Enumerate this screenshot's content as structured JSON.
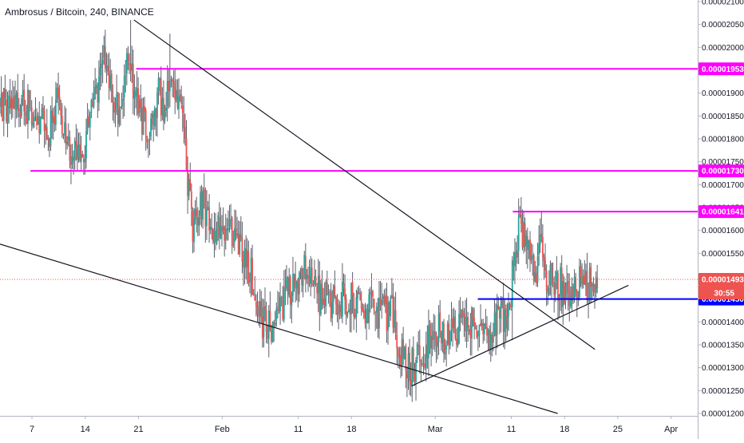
{
  "header": {
    "title": "Ambrosus / Bitcoin, 240, BINANCE"
  },
  "chart_data": {
    "type": "candlestick",
    "title": "Ambrosus / Bitcoin, 240, BINANCE",
    "grid": false,
    "ylim": [
      1.2e-05,
      2.11e-05
    ],
    "y_ticks": [
      {
        "value": 2.1e-05,
        "label": "0.00002100"
      },
      {
        "value": 2.05e-05,
        "label": "0.00002050"
      },
      {
        "value": 2e-05,
        "label": "0.00002000"
      },
      {
        "value": 1.95e-05,
        "label": "0.00001950"
      },
      {
        "value": 1.9e-05,
        "label": "0.00001900"
      },
      {
        "value": 1.85e-05,
        "label": "0.00001850"
      },
      {
        "value": 1.8e-05,
        "label": "0.00001800"
      },
      {
        "value": 1.75e-05,
        "label": "0.00001750"
      },
      {
        "value": 1.7e-05,
        "label": "0.00001700"
      },
      {
        "value": 1.65e-05,
        "label": "0.00001650"
      },
      {
        "value": 1.6e-05,
        "label": "0.00001600"
      },
      {
        "value": 1.55e-05,
        "label": "0.00001550"
      },
      {
        "value": 1.5e-05,
        "label": "0.00001500"
      },
      {
        "value": 1.45e-05,
        "label": "0.00001450"
      },
      {
        "value": 1.4e-05,
        "label": "0.00001400"
      },
      {
        "value": 1.35e-05,
        "label": "0.00001350"
      },
      {
        "value": 1.3e-05,
        "label": "0.00001300"
      },
      {
        "value": 1.25e-05,
        "label": "0.00001250"
      },
      {
        "value": 1.2e-05,
        "label": "0.00001200"
      }
    ],
    "x_ticks": [
      {
        "day": -25,
        "label": "7"
      },
      {
        "day": -18,
        "label": "14"
      },
      {
        "day": -11,
        "label": "21"
      },
      {
        "day": 0,
        "label": "Feb"
      },
      {
        "day": 10,
        "label": "11"
      },
      {
        "day": 17,
        "label": "18"
      },
      {
        "day": 28,
        "label": "Mar"
      },
      {
        "day": 38,
        "label": "11"
      },
      {
        "day": 45,
        "label": "18"
      },
      {
        "day": 52,
        "label": "25"
      },
      {
        "day": 59,
        "label": "Apr"
      }
    ],
    "x_range_days": [
      -29.2,
      62.5
    ],
    "levels": [
      {
        "value": 1.953e-05,
        "label": "0.00001953",
        "color": "#ff00ff",
        "from_day": -11.3
      },
      {
        "value": 1.73e-05,
        "label": "0.00001730",
        "color": "#ff00ff",
        "from_day": -25.2
      },
      {
        "value": 1.641e-05,
        "label": "0.00001641",
        "color": "#ff00ff",
        "from_day": 38.2
      },
      {
        "value": 1.45e-05,
        "label": "0.00001450",
        "color": "#0000ff",
        "from_day": 33.6
      }
    ],
    "last_price": {
      "value": 1.493e-05,
      "label": "0.00001493",
      "countdown": "30:55",
      "color": "#ef5350"
    },
    "trendlines": [
      {
        "from": {
          "day": -11.6,
          "value": 2.06e-05
        },
        "to": {
          "day": 49.0,
          "value": 1.34e-05
        }
      },
      {
        "from": {
          "day": -29.2,
          "value": 1.57e-05
        },
        "to": {
          "day": 44.1,
          "value": 1.2e-05
        }
      },
      {
        "from": {
          "day": 24.9,
          "value": 1.26e-05
        },
        "to": {
          "day": 53.4,
          "value": 1.48e-05
        }
      }
    ],
    "colors": {
      "up": "#26a69a",
      "down": "#ef5350",
      "wick": "#5d606b"
    },
    "anchors": [
      [
        -29.2,
        1.88e-05
      ],
      [
        -27.0,
        1.88e-05
      ],
      [
        -25.3,
        1.87e-05
      ],
      [
        -24.2,
        1.85e-05
      ],
      [
        -22.8,
        1.81e-05
      ],
      [
        -21.6,
        1.88e-05
      ],
      [
        -20.8,
        1.8e-05
      ],
      [
        -19.8,
        1.77e-05
      ],
      [
        -18.2,
        1.77e-05
      ],
      [
        -17.0,
        1.86e-05
      ],
      [
        -15.7,
        1.98e-05
      ],
      [
        -14.6,
        1.89e-05
      ],
      [
        -13.5,
        1.87e-05
      ],
      [
        -12.2,
        1.98e-05
      ],
      [
        -11.0,
        1.85e-05
      ],
      [
        -9.5,
        1.83e-05
      ],
      [
        -8.2,
        1.91e-05
      ],
      [
        -7.6,
        1.83e-05
      ],
      [
        -6.9,
        1.93e-05
      ],
      [
        -5.6,
        1.86e-05
      ],
      [
        -4.9,
        1.81e-05
      ],
      [
        -4.4,
        1.68e-05
      ],
      [
        -3.9,
        1.61e-05
      ],
      [
        -2.7,
        1.66e-05
      ],
      [
        -1.1,
        1.61e-05
      ],
      [
        0.2,
        1.57e-05
      ],
      [
        1.3,
        1.6e-05
      ],
      [
        2.6,
        1.56e-05
      ],
      [
        3.8,
        1.51e-05
      ],
      [
        4.9,
        1.41e-05
      ],
      [
        6.2,
        1.39e-05
      ],
      [
        7.4,
        1.42e-05
      ],
      [
        9.0,
        1.48e-05
      ],
      [
        10.8,
        1.51e-05
      ],
      [
        12.4,
        1.46e-05
      ],
      [
        14.3,
        1.44e-05
      ],
      [
        16.5,
        1.45e-05
      ],
      [
        18.2,
        1.44e-05
      ],
      [
        20.5,
        1.42e-05
      ],
      [
        22.3,
        1.42e-05
      ],
      [
        23.8,
        1.32e-05
      ],
      [
        24.9,
        1.3e-05
      ],
      [
        26.6,
        1.34e-05
      ],
      [
        28.3,
        1.39e-05
      ],
      [
        29.5,
        1.36e-05
      ],
      [
        31.0,
        1.38e-05
      ],
      [
        32.6,
        1.4e-05
      ],
      [
        33.6,
        1.36e-05
      ],
      [
        35.5,
        1.35e-05
      ],
      [
        36.5,
        1.45e-05
      ],
      [
        37.4,
        1.38e-05
      ],
      [
        38.3,
        1.52e-05
      ],
      [
        39.0,
        1.62e-05
      ],
      [
        40.1,
        1.55e-05
      ],
      [
        41.3,
        1.51e-05
      ],
      [
        41.9,
        1.58e-05
      ],
      [
        42.6,
        1.5e-05
      ],
      [
        44.0,
        1.48e-05
      ],
      [
        45.5,
        1.47e-05
      ],
      [
        47.0,
        1.48e-05
      ],
      [
        48.5,
        1.49e-05
      ],
      [
        49.3,
        1.49e-05
      ]
    ],
    "spikes": [
      {
        "day": -12.1,
        "high": 2.06e-05
      },
      {
        "day": -6.8,
        "high": 2.03e-05
      },
      {
        "day": -3.9,
        "low": 1.55e-05
      },
      {
        "day": 6.8,
        "low": 1.39e-05
      },
      {
        "day": 24.7,
        "low": 1.24e-05
      },
      {
        "day": 38.9,
        "high": 1.67e-05
      },
      {
        "day": 41.9,
        "high": 1.64e-05
      },
      {
        "day": 38.2,
        "low": 1.36e-05
      }
    ]
  }
}
